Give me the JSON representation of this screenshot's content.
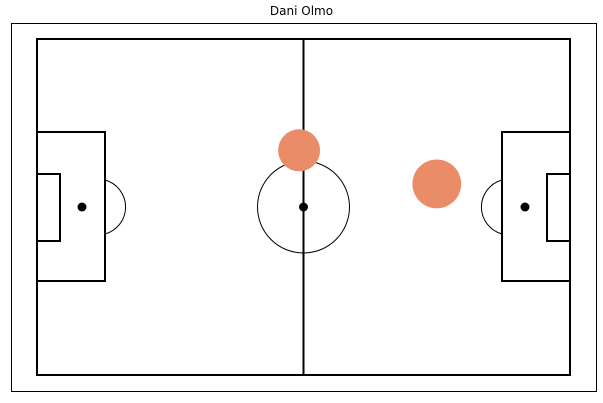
{
  "chart_data": {
    "type": "scatter",
    "title": "Dani Olmo",
    "pitch": {
      "length": 120,
      "width": 80,
      "grid": false
    },
    "series": [
      {
        "marker_color": "#eb8c69",
        "points": [
          {
            "x": 59,
            "y": 53.5,
            "size": 1
          },
          {
            "x": 90,
            "y": 45.5,
            "size": 1.35
          }
        ]
      }
    ]
  }
}
